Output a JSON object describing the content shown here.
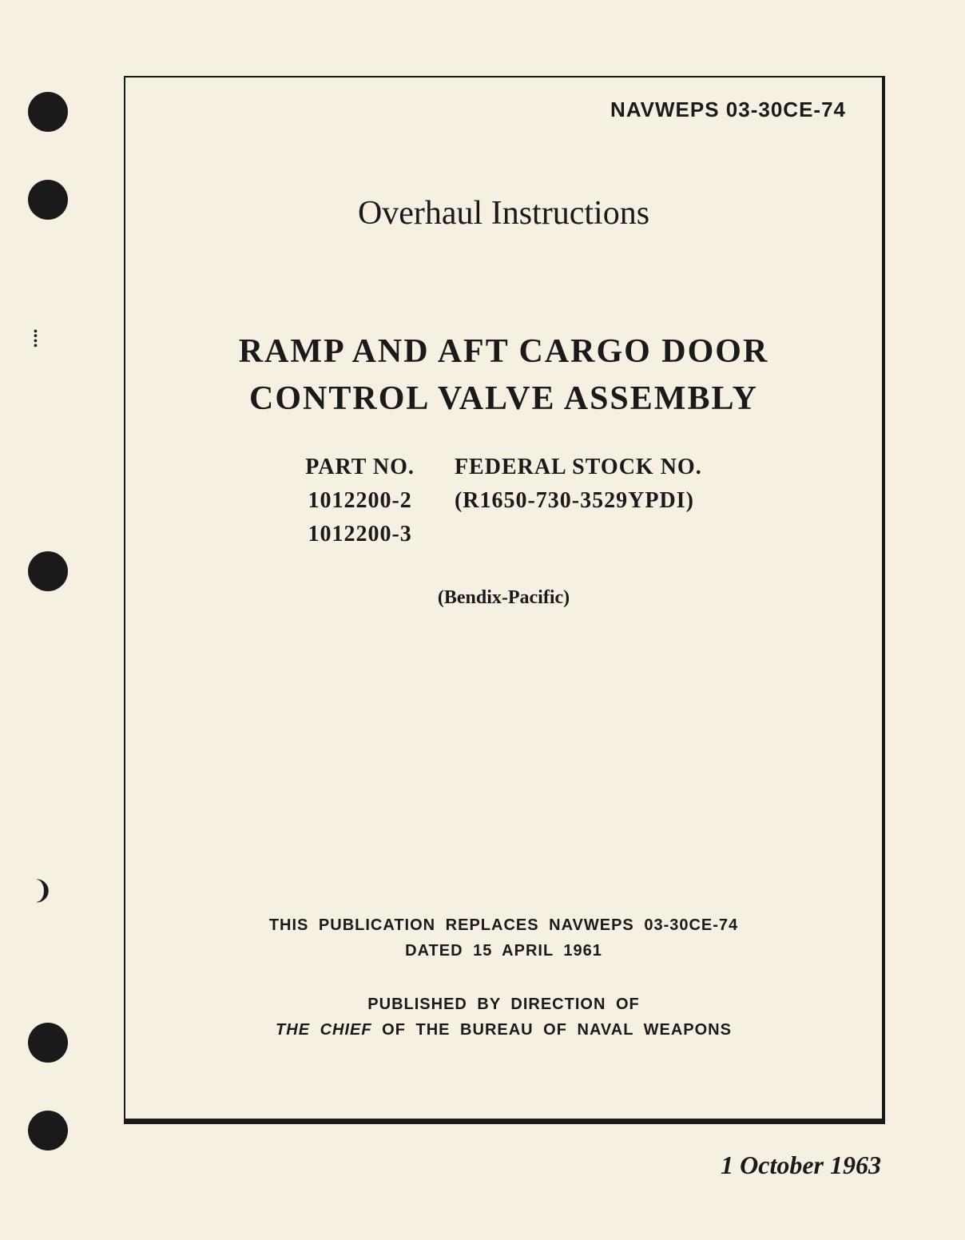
{
  "header": {
    "doc_id": "NAVWEPS 03-30CE-74"
  },
  "titles": {
    "main": "Overhaul Instructions",
    "subject_line1": "RAMP AND AFT CARGO DOOR",
    "subject_line2": "CONTROL VALVE ASSEMBLY"
  },
  "part_info": {
    "part_label": "PART NO.",
    "part_numbers": [
      "1012200-2",
      "1012200-3"
    ],
    "stock_label": "FEDERAL STOCK NO.",
    "stock_number": "(R1650-730-3529YPDI)"
  },
  "manufacturer": "(Bendix-Pacific)",
  "replaces": {
    "line1": "THIS PUBLICATION REPLACES NAVWEPS 03-30CE-74",
    "line2": "DATED 15 APRIL 1961"
  },
  "published": {
    "line1": "PUBLISHED BY DIRECTION OF",
    "line2_italic": "THE CHIEF",
    "line2_rest": " OF THE BUREAU OF NAVAL WEAPONS"
  },
  "footer": {
    "date": "1 October 1963"
  },
  "styling": {
    "background_color": "#f5f0e1",
    "text_color": "#1a1a1a",
    "border_color": "#1a1a1a",
    "hole_color": "#1a1a1a",
    "title_fontsize": 42,
    "doc_id_fontsize": 26,
    "part_info_fontsize": 28,
    "manufacturer_fontsize": 24,
    "footer_fontsize": 20,
    "date_fontsize": 32
  }
}
